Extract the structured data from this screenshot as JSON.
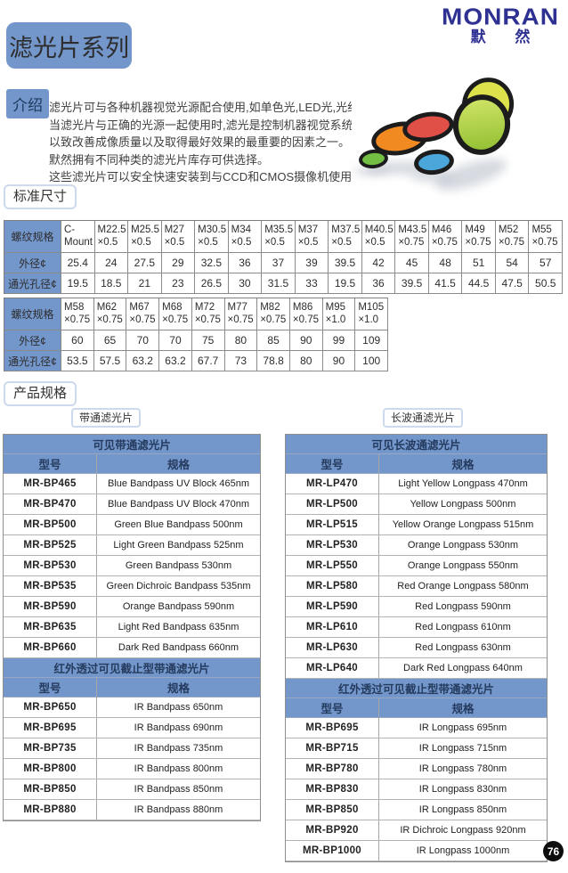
{
  "logo": {
    "name": "MONRAN",
    "cn": "默 然"
  },
  "title": "滤光片系列",
  "page_number": "76",
  "colors": {
    "brand_blue": "#2e3192",
    "header_blue": "#7396cb",
    "badge_black": "#0d0d0d"
  },
  "intro": {
    "label": "介绍",
    "lines": [
      "滤光片可与各种机器视觉光源配合使用,如单色光,LED光,光纤照明等等.",
      "当滤光片与正确的光源一起使用时,滤光是控制机器视觉系统的性能能",
      "以致改善成像质量以及取得最好效果的最重要的因素之一。",
      "默然拥有不同种类的滤光片库存可供选择。",
      "这些滤光片可以安全快速安装到与CCD和CMOS摄像机使用的镜头上"
    ]
  },
  "photo": {
    "discs": [
      {
        "name": "green-filter",
        "color": "#72bf44"
      },
      {
        "name": "orange-filter",
        "color": "#f18a21"
      },
      {
        "name": "red-filter",
        "color": "#e05047"
      },
      {
        "name": "blue-filter",
        "color": "#4ba6d9"
      },
      {
        "name": "yellow-filter",
        "color": "#dde24c"
      },
      {
        "name": "yellow-green-filter",
        "color": "#b0d335"
      }
    ]
  },
  "standard_size": {
    "label": "标准尺寸",
    "row_headers": [
      "螺纹规格",
      "外径¢",
      "通光孔径¢"
    ],
    "table1": {
      "threads": [
        "C-Mount",
        "M22.5\n×0.5",
        "M25.5\n×0.5",
        "M27\n×0.5",
        "M30.5\n×0.5",
        "M34\n×0.5",
        "M35.5\n×0.5",
        "M37\n×0.5",
        "M37.5\n×0.5",
        "M40.5\n×0.5",
        "M43.5\n×0.75",
        "M46\n×0.75",
        "M49\n×0.75",
        "M52\n×0.75",
        "M55\n×0.75"
      ],
      "outer": [
        "25.4",
        "24",
        "27.5",
        "29",
        "32.5",
        "36",
        "37",
        "39",
        "39.5",
        "42",
        "45",
        "48",
        "51",
        "54",
        "57"
      ],
      "aperture": [
        "19.5",
        "18.5",
        "21",
        "23",
        "26.5",
        "30",
        "31.5",
        "33",
        "19.5",
        "36",
        "39.5",
        "41.5",
        "44.5",
        "47.5",
        "50.5"
      ]
    },
    "table2": {
      "threads": [
        "M58\n×0.75",
        "M62\n×0.75",
        "M67\n×0.75",
        "M68\n×0.75",
        "M72\n×0.75",
        "M77\n×0.75",
        "M82\n×0.75",
        "M86\n×0.75",
        "M95\n×1.0",
        "M105\n×1.0"
      ],
      "outer": [
        "60",
        "65",
        "70",
        "70",
        "75",
        "80",
        "85",
        "90",
        "99",
        "109"
      ],
      "aperture": [
        "53.5",
        "57.5",
        "63.2",
        "63.2",
        "67.7",
        "73",
        "78.8",
        "80",
        "90",
        "100"
      ]
    }
  },
  "product_spec": {
    "label": "产品规格",
    "col_model": "型号",
    "col_spec": "规格",
    "left": {
      "tag": "带通滤光片",
      "sections": [
        {
          "title": "可见带通滤光片",
          "rows": [
            {
              "model": "MR-BP465",
              "spec": "Blue Bandpass UV Block 465nm"
            },
            {
              "model": "MR-BP470",
              "spec": "Blue Bandpass UV Block 470nm"
            },
            {
              "model": "MR-BP500",
              "spec": "Green Blue Bandpass 500nm"
            },
            {
              "model": "MR-BP525",
              "spec": "Light Green Bandpass 525nm"
            },
            {
              "model": "MR-BP530",
              "spec": "Green Bandpass 530nm"
            },
            {
              "model": "MR-BP535",
              "spec": "Green Dichroic Bandpass 535nm"
            },
            {
              "model": "MR-BP590",
              "spec": "Orange Bandpass 590nm"
            },
            {
              "model": "MR-BP635",
              "spec": "Light Red Bandpass 635nm"
            },
            {
              "model": "MR-BP660",
              "spec": "Dark Red Bandpass 660nm"
            }
          ]
        },
        {
          "title": "红外透过可见截止型带通滤光片",
          "rows": [
            {
              "model": "MR-BP650",
              "spec": "IR Bandpass 650nm"
            },
            {
              "model": "MR-BP695",
              "spec": "IR Bandpass 690nm"
            },
            {
              "model": "MR-BP735",
              "spec": "IR Bandpass 735nm"
            },
            {
              "model": "MR-BP800",
              "spec": "IR Bandpass 800nm"
            },
            {
              "model": "MR-BP850",
              "spec": "IR Bandpass 850nm"
            },
            {
              "model": "MR-BP880",
              "spec": "IR Bandpass 880nm"
            }
          ]
        }
      ]
    },
    "right": {
      "tag": "长波通滤光片",
      "sections": [
        {
          "title": "可见长波通滤光片",
          "rows": [
            {
              "model": "MR-LP470",
              "spec": "Light Yellow Longpass 470nm"
            },
            {
              "model": "MR-LP500",
              "spec": "Yellow Longpass 500nm"
            },
            {
              "model": "MR-LP515",
              "spec": "Yellow Orange Longpass 515nm"
            },
            {
              "model": "MR-LP530",
              "spec": "Orange Longpass 530nm"
            },
            {
              "model": "MR-LP550",
              "spec": "Orange Longpass 550nm"
            },
            {
              "model": "MR-LP580",
              "spec": "Red Orange Longpass 580nm"
            },
            {
              "model": "MR-LP590",
              "spec": "Red Longpass 590nm"
            },
            {
              "model": "MR-LP610",
              "spec": "Red Longpass 610nm"
            },
            {
              "model": "MR-LP630",
              "spec": "Red Longpass 630nm"
            },
            {
              "model": "MR-LP640",
              "spec": "Dark Red Longpass 640nm"
            }
          ]
        },
        {
          "title": "红外透过可见截止型带通滤光片",
          "rows": [
            {
              "model": "MR-BP695",
              "spec": "IR Longpass 695nm"
            },
            {
              "model": "MR-BP715",
              "spec": "IR Longpass 715nm"
            },
            {
              "model": "MR-BP780",
              "spec": "IR Longpass 780nm"
            },
            {
              "model": "MR-BP830",
              "spec": "IR Longpass 830nm"
            },
            {
              "model": "MR-BP850",
              "spec": "IR Longpass 850nm"
            },
            {
              "model": "MR-BP920",
              "spec": "IR Dichroic Longpass 920nm"
            },
            {
              "model": "MR-BP1000",
              "spec": "IR Longpass 1000nm"
            }
          ]
        }
      ]
    }
  }
}
